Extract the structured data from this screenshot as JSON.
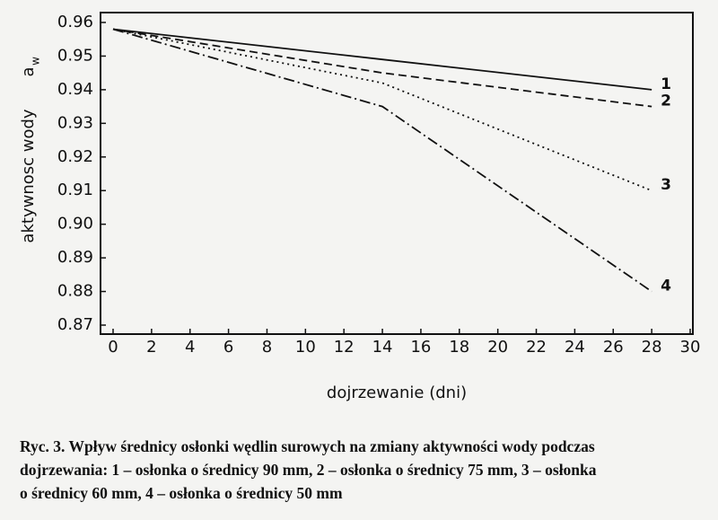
{
  "chart_data": {
    "type": "line",
    "xlabel": "dojrzewanie (dni)",
    "ylabel": "aktywnosc wody",
    "ylabel_symbol": "a",
    "ylabel_subscript": "w",
    "x": [
      0,
      14,
      28
    ],
    "series": [
      {
        "name": "1",
        "color": "#111111",
        "style": "solid",
        "values": [
          0.958,
          0.949,
          0.94
        ]
      },
      {
        "name": "2",
        "color": "#111111",
        "style": "dashed",
        "values": [
          0.958,
          0.945,
          0.935
        ]
      },
      {
        "name": "3",
        "color": "#111111",
        "style": "dotted",
        "values": [
          0.958,
          0.942,
          0.91
        ]
      },
      {
        "name": "4",
        "color": "#111111",
        "style": "dashdot",
        "values": [
          0.958,
          0.935,
          0.88
        ]
      }
    ],
    "xlim": [
      0,
      30
    ],
    "xticks": [
      0,
      2,
      4,
      6,
      8,
      10,
      12,
      14,
      16,
      18,
      20,
      22,
      24,
      26,
      28,
      30
    ],
    "ylim": [
      0.87,
      0.96
    ],
    "yticks": [
      0.87,
      0.88,
      0.89,
      {
        "value": 0.9,
        "label": "0.90"
      },
      0.91,
      0.92,
      0.93,
      0.94,
      0.95,
      0.96
    ],
    "caption": [
      "Ryc. 3. Wpływ średnicy osłonki wędlin surowych na zmiany aktywności wody podczas",
      "dojrzewania: 1 – osłonka o średnicy 90 mm, 2 – osłonka o średnicy 75 mm, 3 – osłonka",
      "o średnicy 60 mm, 4 – osłonka o średnicy 50 mm"
    ]
  }
}
